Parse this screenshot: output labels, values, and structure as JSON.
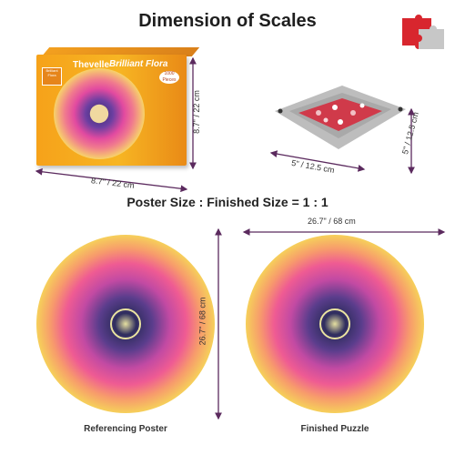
{
  "title": "Dimension of Scales",
  "ratio_text": "Poster Size : Finished Size = 1 : 1",
  "box": {
    "brand": "Thevelle",
    "product": "Brilliant Flora",
    "pieces_badge": "1000 Pieces",
    "side_badge": "Brilliant Flora",
    "width_label": "8.7\" / 22 cm",
    "height_label": "8.7\" / 22 cm"
  },
  "tray": {
    "width_label": "5\" / 12.5 cm",
    "height_label": "5\" / 12.5 cm"
  },
  "poster": {
    "width_label": "26.7\" / 68 cm",
    "height_label": "26.7\" / 68 cm",
    "caption_left": "Referencing Poster",
    "caption_right": "Finished Puzzle"
  },
  "colors": {
    "arrow": "#5b2a5e",
    "box_orange": "#f6a21a",
    "felt_gray": "#b9b9b9",
    "logo_red": "#d8262e",
    "logo_gray": "#c7c7c7"
  },
  "icons": [
    "puzzle-pieces-icon",
    "flower-mandala-image",
    "felt-tray-icon"
  ]
}
